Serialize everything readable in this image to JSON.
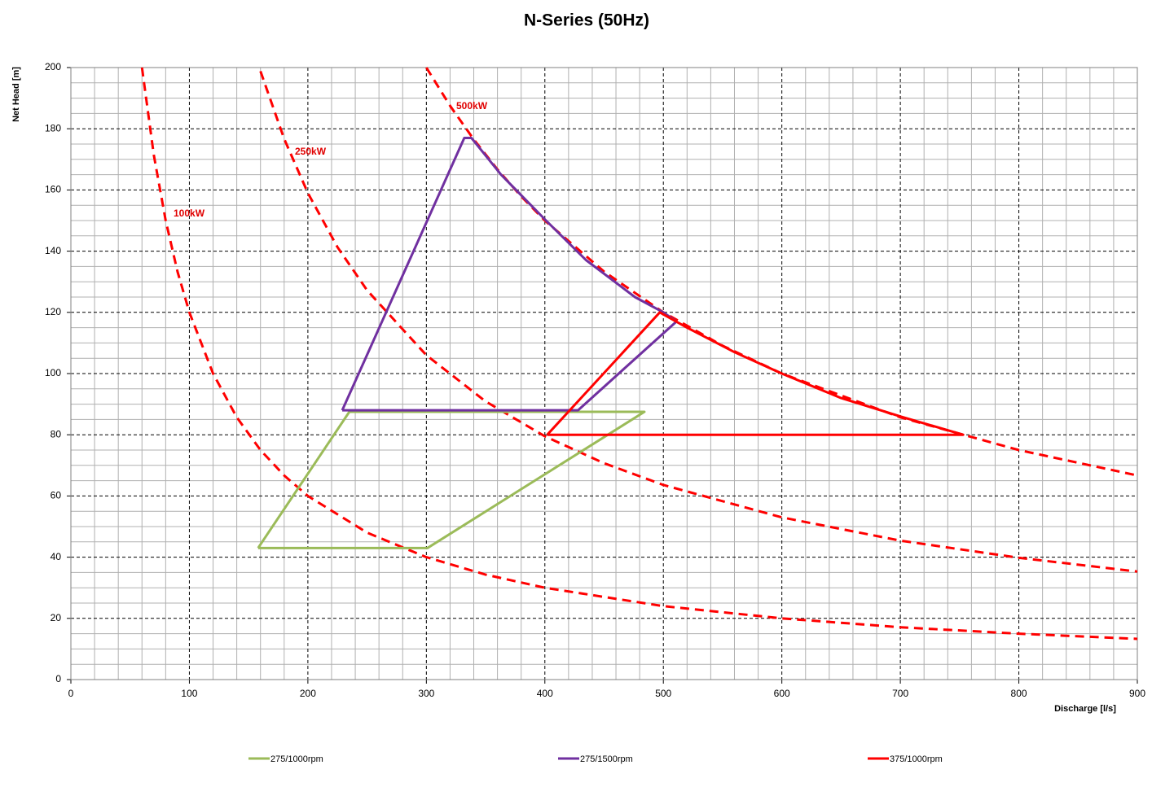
{
  "chart_data": {
    "type": "line",
    "title": "N-Series (50Hz)",
    "x_label": "Discharge  [l/s]",
    "y_label": "Net Head [m]",
    "xlim": [
      0,
      900
    ],
    "ylim": [
      0,
      200
    ],
    "xticks": [
      0,
      100,
      200,
      300,
      400,
      500,
      600,
      700,
      800,
      900
    ],
    "yticks": [
      0,
      20,
      40,
      60,
      80,
      100,
      120,
      140,
      160,
      180,
      200
    ],
    "grid": true,
    "legend": "bottom",
    "series": [
      {
        "name": "275/1000rpm",
        "color": "#9bbb59",
        "x": [
          158,
          301,
          484,
          235,
          158
        ],
        "values": [
          43,
          43,
          87.5,
          87.5,
          43
        ]
      },
      {
        "name": "275/1500rpm",
        "color": "#7030a0",
        "x": [
          229,
          332,
          338,
          363,
          401,
          435,
          476,
          500,
          511,
          428,
          229
        ],
        "values": [
          88,
          177,
          177,
          165,
          150,
          137,
          125,
          120,
          117,
          88,
          88
        ]
      },
      {
        "name": "375/1000rpm",
        "color": "#ff0000",
        "x": [
          402,
          497,
          520,
          560,
          600,
          650,
          700,
          753,
          402
        ],
        "values": [
          80,
          120,
          115,
          107,
          100,
          92,
          86,
          80,
          80
        ]
      }
    ],
    "power_curves": [
      {
        "label": "100kW",
        "color": "#ff0000",
        "x": [
          60,
          70,
          80,
          90,
          100,
          120,
          140,
          160,
          180,
          200,
          250,
          300,
          350,
          400,
          500,
          600,
          700,
          800,
          900
        ],
        "values": [
          200,
          171.4,
          150,
          133.3,
          120,
          100,
          85.7,
          75,
          66.7,
          60,
          48,
          40,
          34.3,
          30,
          24,
          20,
          17.1,
          15,
          13.3
        ]
      },
      {
        "label": "250kW",
        "color": "#ff0000",
        "x": [
          160,
          180,
          200,
          225,
          250,
          300,
          350,
          400,
          450,
          500,
          600,
          700,
          800,
          900
        ],
        "values": [
          198.8,
          176.7,
          159,
          141.3,
          127.2,
          106,
          90.9,
          79.5,
          70.7,
          63.6,
          53,
          45.4,
          39.8,
          35.3
        ]
      },
      {
        "label": "500kW",
        "color": "#ff0000",
        "x": [
          300,
          320,
          340,
          360,
          380,
          400,
          450,
          500,
          550,
          600,
          700,
          800,
          900
        ],
        "values": [
          200,
          187.5,
          176.5,
          166.7,
          157.9,
          150,
          133.3,
          120,
          109.1,
          100,
          85.7,
          75,
          66.7
        ]
      }
    ]
  }
}
